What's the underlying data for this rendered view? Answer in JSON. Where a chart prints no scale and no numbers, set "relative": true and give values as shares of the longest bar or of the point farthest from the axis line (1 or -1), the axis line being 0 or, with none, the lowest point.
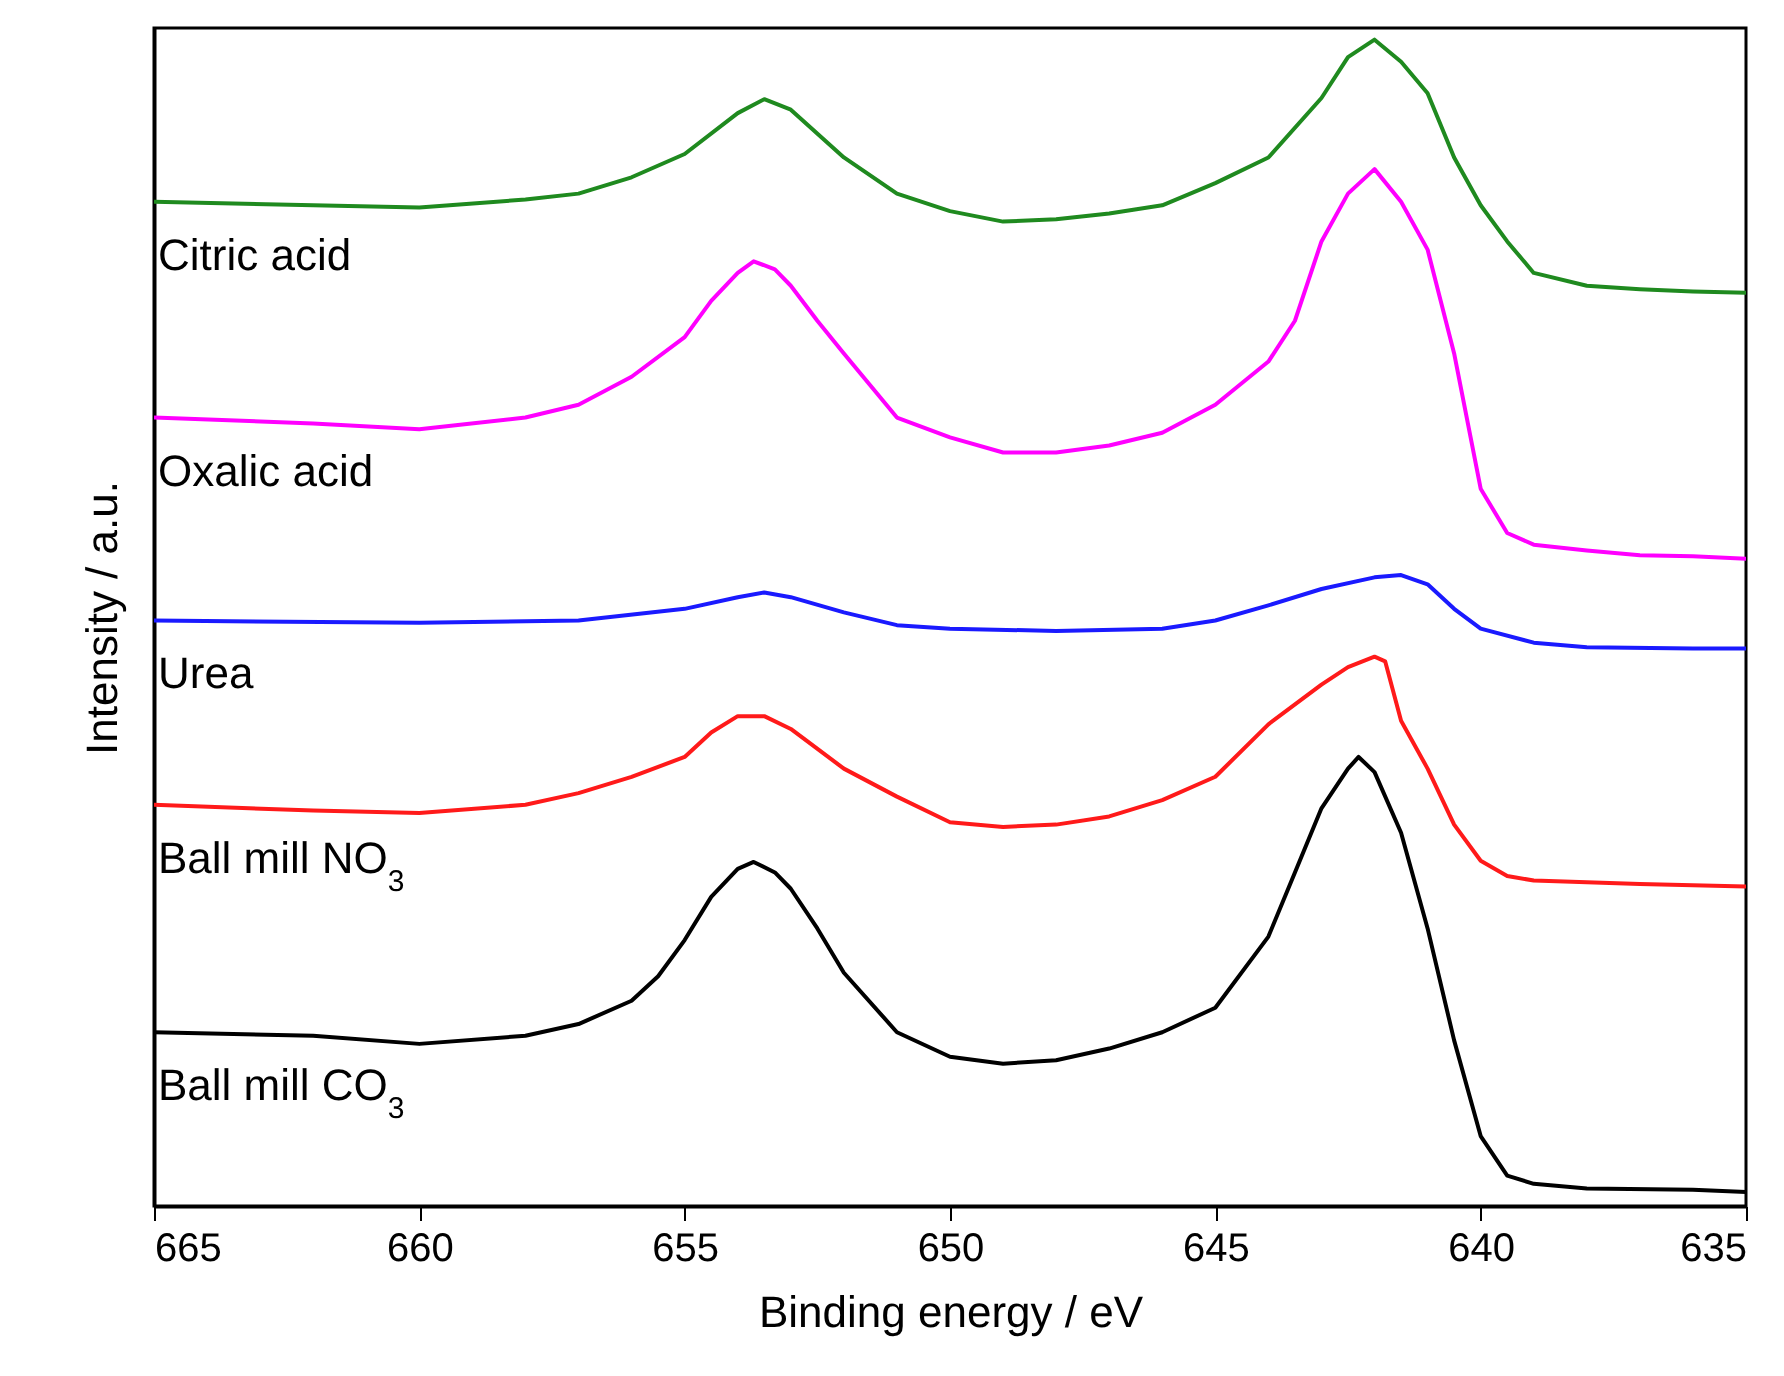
{
  "chart_data": {
    "type": "line",
    "relative": true,
    "xlabel": "Binding energy / eV",
    "ylabel": "Intensity / a.u.",
    "xlim": [
      665,
      635
    ],
    "xticks": [
      665,
      660,
      655,
      650,
      645,
      640,
      635
    ],
    "series": [
      {
        "name": "Citric acid",
        "color": "#1f8a1f",
        "x": [
          665,
          662,
          660,
          658,
          657,
          656,
          655,
          654,
          653.5,
          653,
          652,
          651,
          650,
          649,
          648,
          647,
          646,
          645,
          644,
          643,
          642.5,
          642,
          641.5,
          641,
          640.5,
          640,
          639.5,
          639,
          638,
          637,
          636,
          635
        ],
        "values": [
          0.861,
          0.858,
          0.856,
          0.863,
          0.868,
          0.882,
          0.902,
          0.937,
          0.949,
          0.94,
          0.899,
          0.868,
          0.853,
          0.844,
          0.846,
          0.851,
          0.858,
          0.877,
          0.899,
          0.95,
          0.985,
          1,
          0.981,
          0.954,
          0.899,
          0.858,
          0.827,
          0.8,
          0.789,
          0.786,
          0.784,
          0.783
        ]
      },
      {
        "name": "Oxalic acid",
        "color": "#ff00ff",
        "x": [
          665,
          662,
          660,
          658,
          657,
          656,
          655,
          654.5,
          654,
          653.7,
          653.3,
          653,
          652.5,
          652,
          651,
          650,
          649,
          648,
          647,
          646,
          645,
          644,
          643.5,
          643,
          642.5,
          642,
          641.5,
          641,
          640.5,
          640,
          639.5,
          639,
          638,
          637,
          636,
          635
        ],
        "values": [
          0.676,
          0.671,
          0.666,
          0.676,
          0.687,
          0.711,
          0.745,
          0.776,
          0.8,
          0.81,
          0.803,
          0.789,
          0.759,
          0.731,
          0.676,
          0.659,
          0.646,
          0.646,
          0.652,
          0.663,
          0.687,
          0.724,
          0.759,
          0.827,
          0.868,
          0.889,
          0.861,
          0.82,
          0.731,
          0.615,
          0.577,
          0.567,
          0.562,
          0.558,
          0.557,
          0.555
        ]
      },
      {
        "name": "Urea",
        "color": "#1a1aff",
        "x": [
          665,
          660,
          657,
          655,
          654,
          653.5,
          653,
          652,
          651,
          650,
          648,
          646,
          645,
          644,
          643,
          642,
          641.5,
          641,
          640.5,
          640,
          639,
          638,
          636,
          635
        ],
        "values": [
          0.502,
          0.5,
          0.502,
          0.512,
          0.522,
          0.526,
          0.522,
          0.509,
          0.498,
          0.495,
          0.493,
          0.495,
          0.502,
          0.515,
          0.529,
          0.539,
          0.541,
          0.533,
          0.512,
          0.495,
          0.483,
          0.479,
          0.478,
          0.478
        ]
      },
      {
        "name": "Ball mill NO$_{3}$",
        "color": "#ff1a1a",
        "x": [
          665,
          662,
          660,
          658,
          657,
          656,
          655,
          654.5,
          654,
          653.5,
          653,
          652,
          651,
          650,
          649,
          648,
          647,
          646,
          645,
          644,
          643,
          642.5,
          642,
          641.8,
          641.5,
          641,
          640.5,
          640,
          639.5,
          639,
          637,
          635
        ],
        "values": [
          0.344,
          0.339,
          0.337,
          0.344,
          0.354,
          0.368,
          0.385,
          0.406,
          0.42,
          0.42,
          0.409,
          0.375,
          0.351,
          0.329,
          0.325,
          0.327,
          0.334,
          0.348,
          0.368,
          0.413,
          0.447,
          0.462,
          0.471,
          0.467,
          0.416,
          0.375,
          0.327,
          0.296,
          0.283,
          0.279,
          0.276,
          0.274
        ]
      },
      {
        "name": "Ball mill CO$_{3}$",
        "color": "#000000",
        "x": [
          665,
          662,
          660,
          658,
          657,
          656,
          655.5,
          655,
          654.5,
          654,
          653.7,
          653.3,
          653,
          652.5,
          652,
          651,
          650,
          649,
          648,
          647,
          646,
          645,
          644,
          643.5,
          643,
          642.5,
          642.3,
          642,
          641.5,
          641,
          640.5,
          640,
          639.5,
          639,
          638,
          636,
          635
        ],
        "values": [
          0.149,
          0.146,
          0.139,
          0.146,
          0.156,
          0.176,
          0.197,
          0.228,
          0.265,
          0.289,
          0.295,
          0.286,
          0.272,
          0.238,
          0.2,
          0.149,
          0.128,
          0.122,
          0.125,
          0.135,
          0.149,
          0.17,
          0.231,
          0.286,
          0.341,
          0.375,
          0.385,
          0.372,
          0.32,
          0.238,
          0.142,
          0.06,
          0.026,
          0.019,
          0.015,
          0.014,
          0.012
        ]
      }
    ]
  }
}
